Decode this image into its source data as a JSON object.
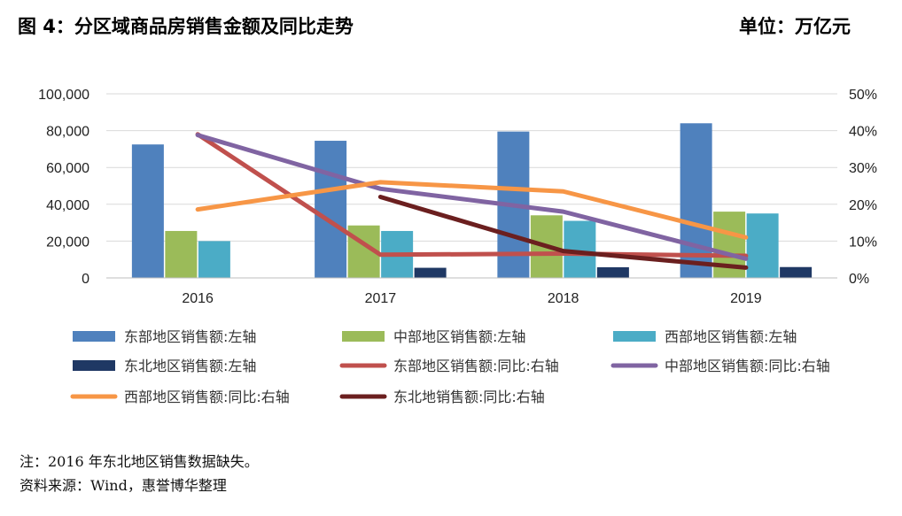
{
  "header": {
    "title": "图 4：分区域商品房销售金额及同比走势",
    "unit": "单位：万亿元"
  },
  "chart_data": {
    "type": "bar",
    "categories": [
      "2016",
      "2017",
      "2018",
      "2019"
    ],
    "left_axis": {
      "ticks": [
        "0",
        "20,000",
        "40,000",
        "60,000",
        "80,000",
        "100,000"
      ],
      "ylim": [
        0,
        100000
      ]
    },
    "right_axis": {
      "ticks": [
        "0%",
        "10%",
        "20%",
        "30%",
        "40%",
        "50%"
      ],
      "ylim": [
        0,
        50
      ]
    },
    "grid": true,
    "legend_position": "bottom",
    "bar_series": [
      {
        "name": "东部地区销售额:左轴",
        "color": "#4F81BD",
        "values": [
          72500,
          74500,
          79500,
          84000
        ]
      },
      {
        "name": "中部地区销售额:左轴",
        "color": "#9BBB59",
        "values": [
          25500,
          28500,
          34000,
          36000
        ]
      },
      {
        "name": "西部地区销售额:左轴",
        "color": "#4BACC6",
        "values": [
          20000,
          25500,
          31000,
          35000
        ]
      },
      {
        "name": "东北地区销售额:左轴",
        "color": "#1F3864",
        "values": [
          null,
          5500,
          5800,
          5900
        ]
      }
    ],
    "line_series": [
      {
        "name": "东部地区销售额:同比:右轴",
        "color": "#C0504D",
        "values": [
          39,
          6.3,
          6.6,
          6
        ]
      },
      {
        "name": "中部地区销售额:同比:右轴",
        "color": "#8064A2",
        "values": [
          38.8,
          24.2,
          18,
          5.2
        ]
      },
      {
        "name": "西部地区销售额:同比:右轴",
        "color": "#F79646",
        "values": [
          18.6,
          26,
          23.5,
          11
        ]
      },
      {
        "name": "东北地销售额:同比:右轴",
        "color": "#6B1F1F",
        "values": [
          null,
          22,
          7.3,
          2.8
        ]
      }
    ]
  },
  "notes": {
    "note": "注：2016 年东北地区销售数据缺失。",
    "source": "资料来源：Wind，惠誉博华整理"
  }
}
